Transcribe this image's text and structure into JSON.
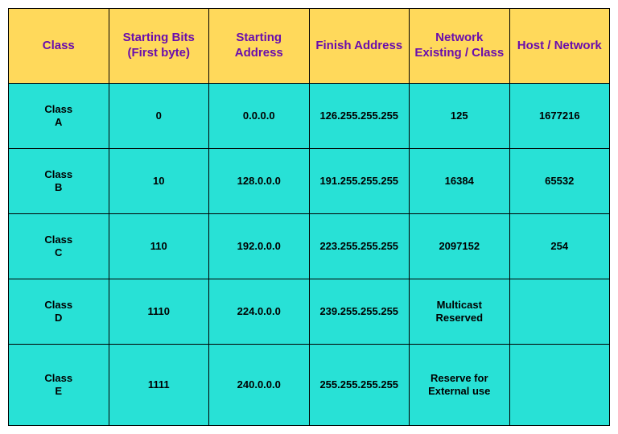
{
  "table": {
    "type": "table",
    "header_bg": "#ffd95b",
    "header_color": "#6a0dad",
    "body_bg": "#28e1d6",
    "border_color": "#000000",
    "header_fontsize": 15,
    "body_fontsize": 13,
    "columns": [
      "Class",
      "Starting Bits (First byte)",
      "Starting Address",
      "Finish Address",
      "Network Existing / Class",
      "Host / Network"
    ],
    "rows": [
      {
        "class": "Class\nA",
        "bits": "0",
        "start": "0.0.0.0",
        "finish": "126.255.255.255",
        "netclass": "125",
        "host": "1677216"
      },
      {
        "class": "Class\nB",
        "bits": "10",
        "start": "128.0.0.0",
        "finish": "191.255.255.255",
        "netclass": "16384",
        "host": "65532"
      },
      {
        "class": "Class\nC",
        "bits": "110",
        "start": "192.0.0.0",
        "finish": "223.255.255.255",
        "netclass": "2097152",
        "host": "254"
      },
      {
        "class": "Class\nD",
        "bits": "1110",
        "start": "224.0.0.0",
        "finish": "239.255.255.255",
        "netclass": "Multicast\nReserved",
        "host": ""
      },
      {
        "class": "Class\nE",
        "bits": "1111",
        "start": "240.0.0.0",
        "finish": "255.255.255.255",
        "netclass": "Reserve for\nExternal use",
        "host": ""
      }
    ]
  }
}
